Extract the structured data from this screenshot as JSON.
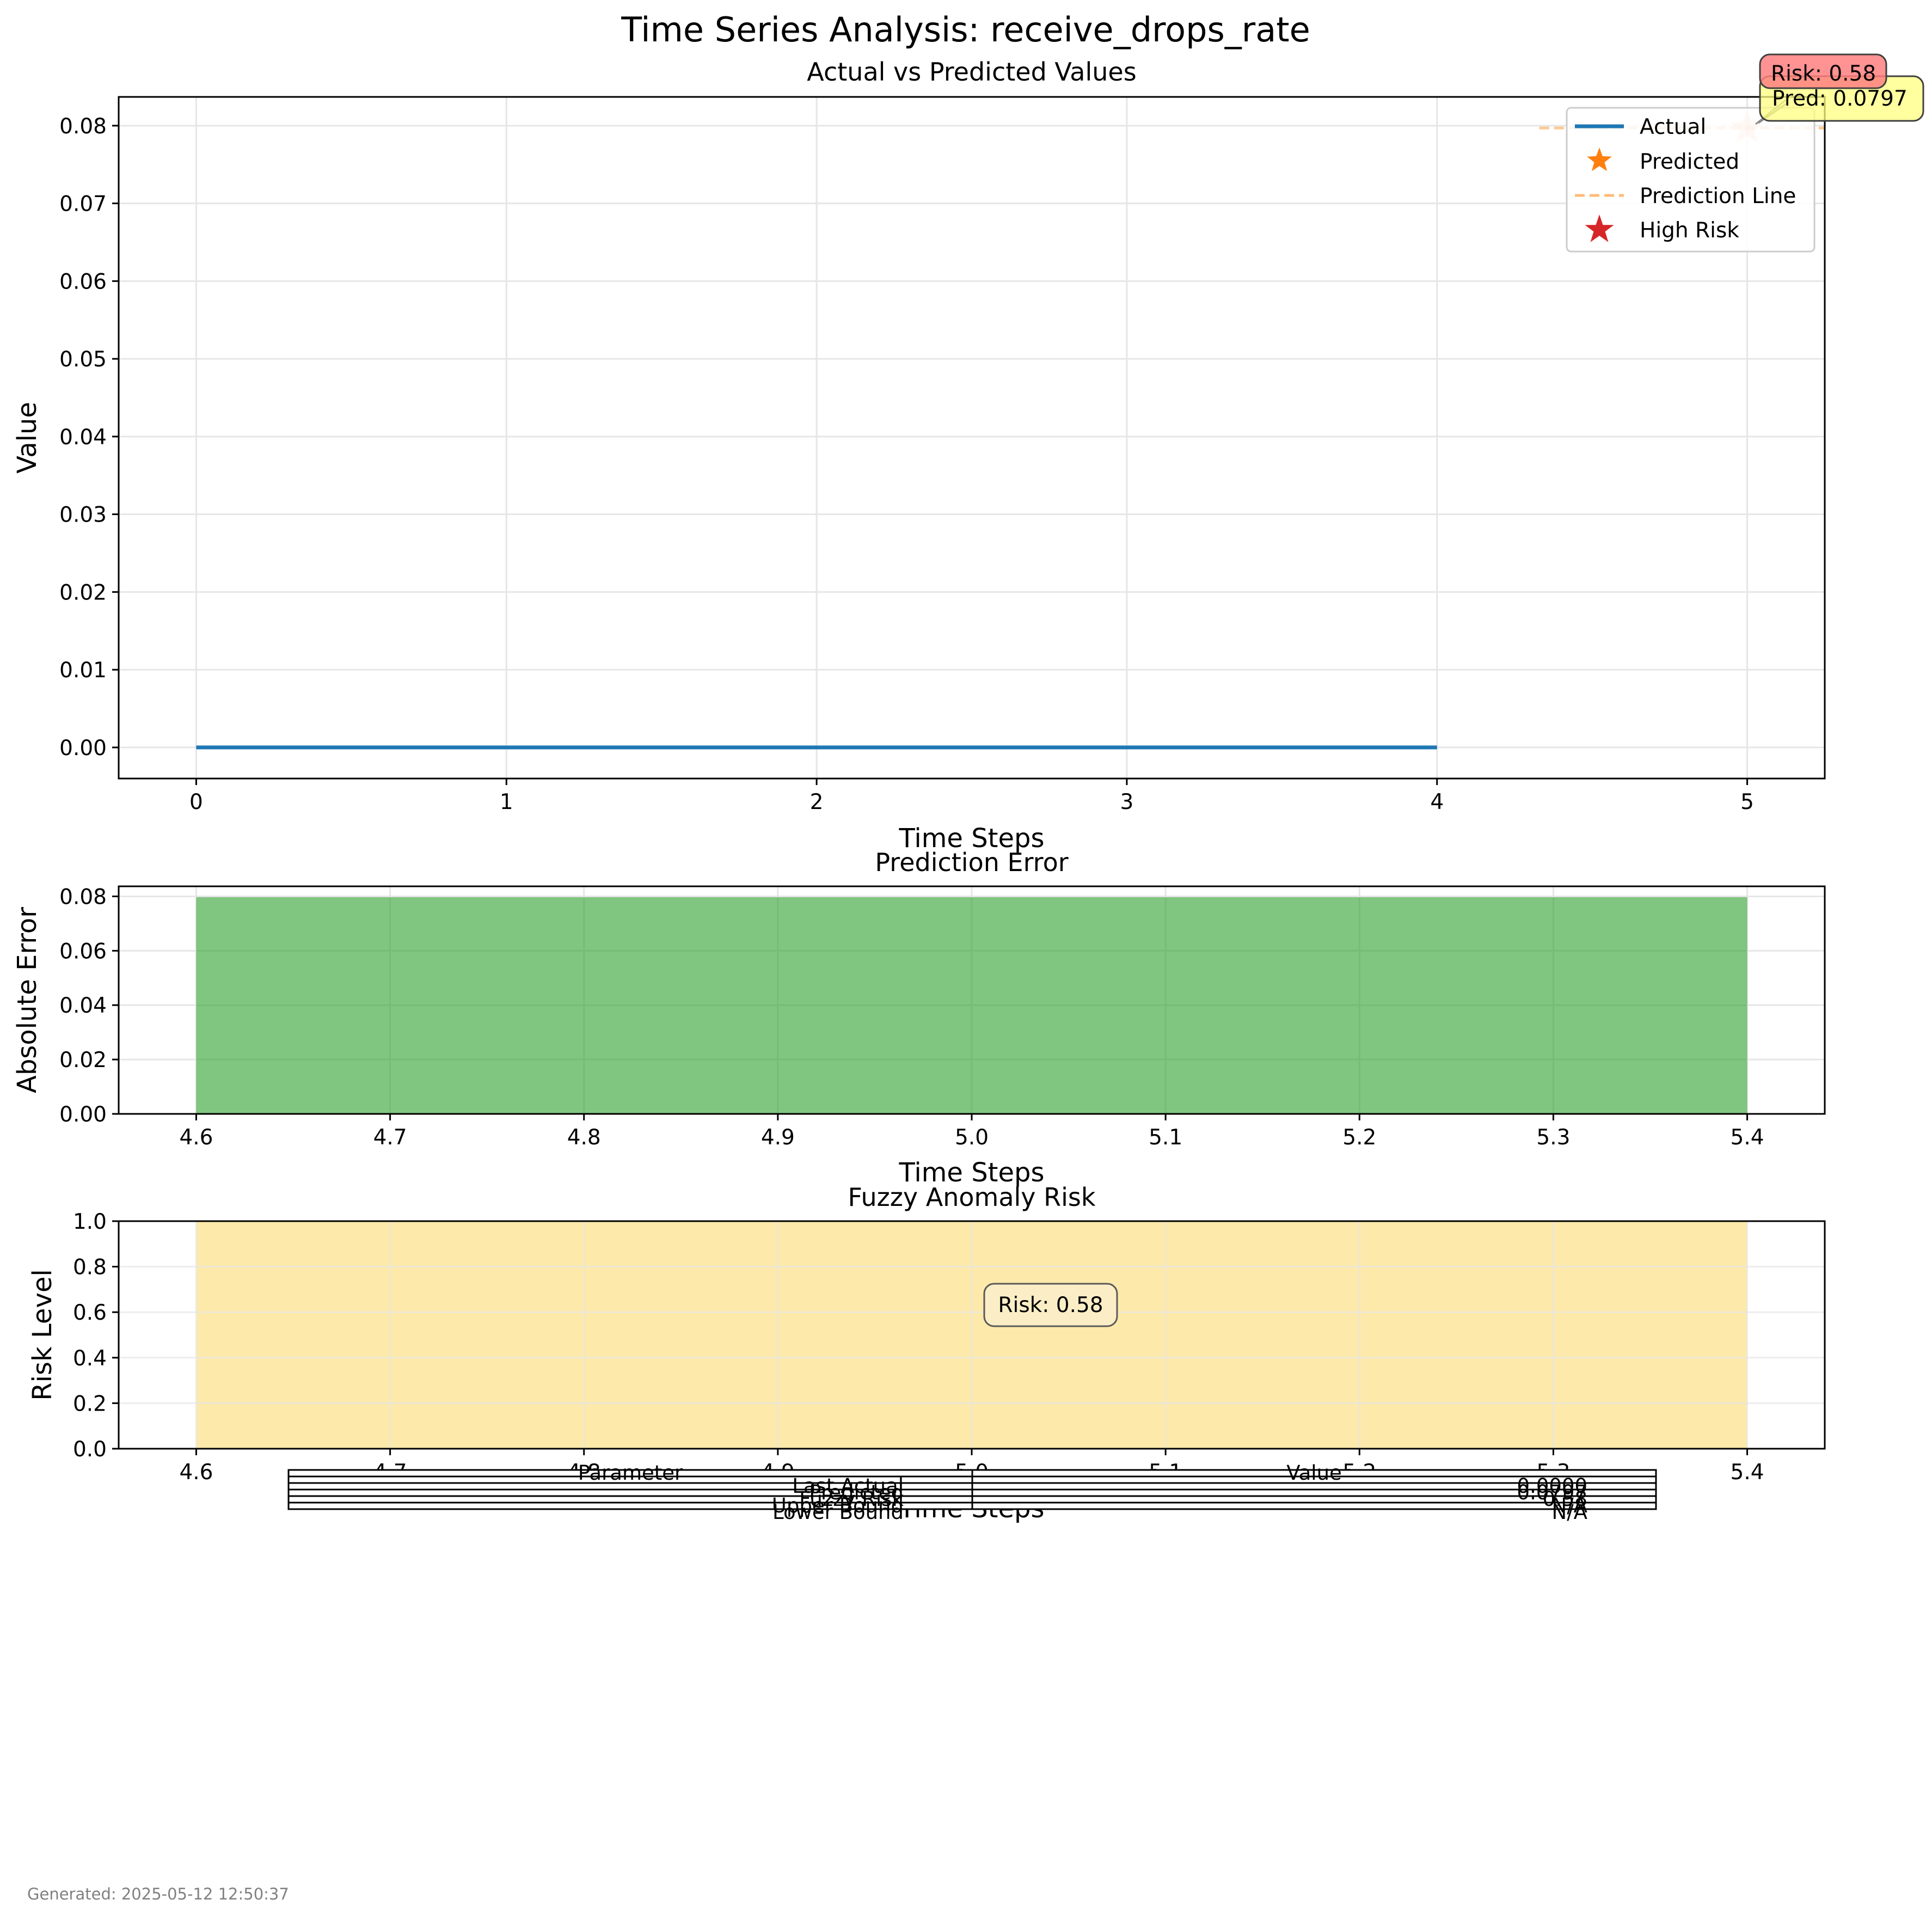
{
  "figure": {
    "title": "Time Series Analysis: receive_drops_rate",
    "footer": "Generated: 2025-05-12 12:50:37"
  },
  "colors": {
    "actual": "#1f77b4",
    "predicted": "#ff7f0e",
    "prediction_line": "#ffbb78",
    "high_risk": "#d62728",
    "error_bar": "#2ca02c",
    "risk_fill": "#fde9a9",
    "risk_box": "#ff7f7f",
    "pred_box": "#ffff7f",
    "grid": "#e6e6e6"
  },
  "chart_data": [
    {
      "type": "line",
      "title": "Actual vs Predicted Values",
      "xlabel": "Time Steps",
      "ylabel": "Value",
      "xlim": [
        -0.25,
        5.25
      ],
      "ylim": [
        -0.004,
        0.0837
      ],
      "xticks": [
        "0",
        "1",
        "2",
        "3",
        "4",
        "5"
      ],
      "yticks": [
        "0.00",
        "0.01",
        "0.02",
        "0.03",
        "0.04",
        "0.05",
        "0.06",
        "0.07",
        "0.08"
      ],
      "grid": true,
      "legend_position": "upper right",
      "series": [
        {
          "name": "Actual",
          "x": [
            0,
            1,
            2,
            3,
            4
          ],
          "y": [
            0,
            0,
            0,
            0,
            0
          ]
        },
        {
          "name": "Predicted",
          "x": [
            5
          ],
          "y": [
            0.0797
          ]
        },
        {
          "name": "Prediction Line",
          "x": [
            4.33,
            5.25
          ],
          "y": [
            0.0797,
            0.0797
          ]
        },
        {
          "name": "High Risk",
          "x": [
            5
          ],
          "y": [
            0.0797
          ]
        }
      ],
      "annotations": [
        "Pred: 0.0797",
        "Risk: 0.58"
      ]
    },
    {
      "type": "bar",
      "title": "Prediction Error",
      "xlabel": "Time Steps",
      "ylabel": "Absolute Error",
      "xlim": [
        4.56,
        5.44
      ],
      "ylim": [
        0,
        0.0837
      ],
      "xticks": [
        "4.6",
        "4.7",
        "4.8",
        "4.9",
        "5.0",
        "5.1",
        "5.2",
        "5.3",
        "5.4"
      ],
      "yticks": [
        "0.00",
        "0.02",
        "0.04",
        "0.06",
        "0.08"
      ],
      "grid": true,
      "bars": [
        {
          "x_from": 4.6,
          "x_to": 5.4,
          "value": 0.0797
        }
      ]
    },
    {
      "type": "bar",
      "title": "Fuzzy Anomaly Risk",
      "xlabel": "Time Steps",
      "ylabel": "Risk Level",
      "xlim": [
        4.56,
        5.44
      ],
      "ylim": [
        0,
        1.0
      ],
      "xticks": [
        "4.6",
        "4.7",
        "4.8",
        "4.9",
        "5.0",
        "5.1",
        "5.2",
        "5.3",
        "5.4"
      ],
      "yticks": [
        "0.0",
        "0.2",
        "0.4",
        "0.6",
        "0.8",
        "1.0"
      ],
      "grid": true,
      "bars": [
        {
          "x_from": 4.6,
          "x_to": 5.4,
          "value": 1.0
        }
      ],
      "annotations": [
        "Risk: 0.58"
      ]
    },
    {
      "type": "table",
      "headers": [
        "Parameter",
        "Value"
      ],
      "rows": [
        [
          "Last Actual",
          "0.0000"
        ],
        [
          "Predicted",
          "0.0797"
        ],
        [
          "Fuzzy Risk",
          "0.58"
        ],
        [
          "Upper Bound",
          "N/A"
        ],
        [
          "Lower Bound",
          "N/A"
        ]
      ]
    }
  ]
}
